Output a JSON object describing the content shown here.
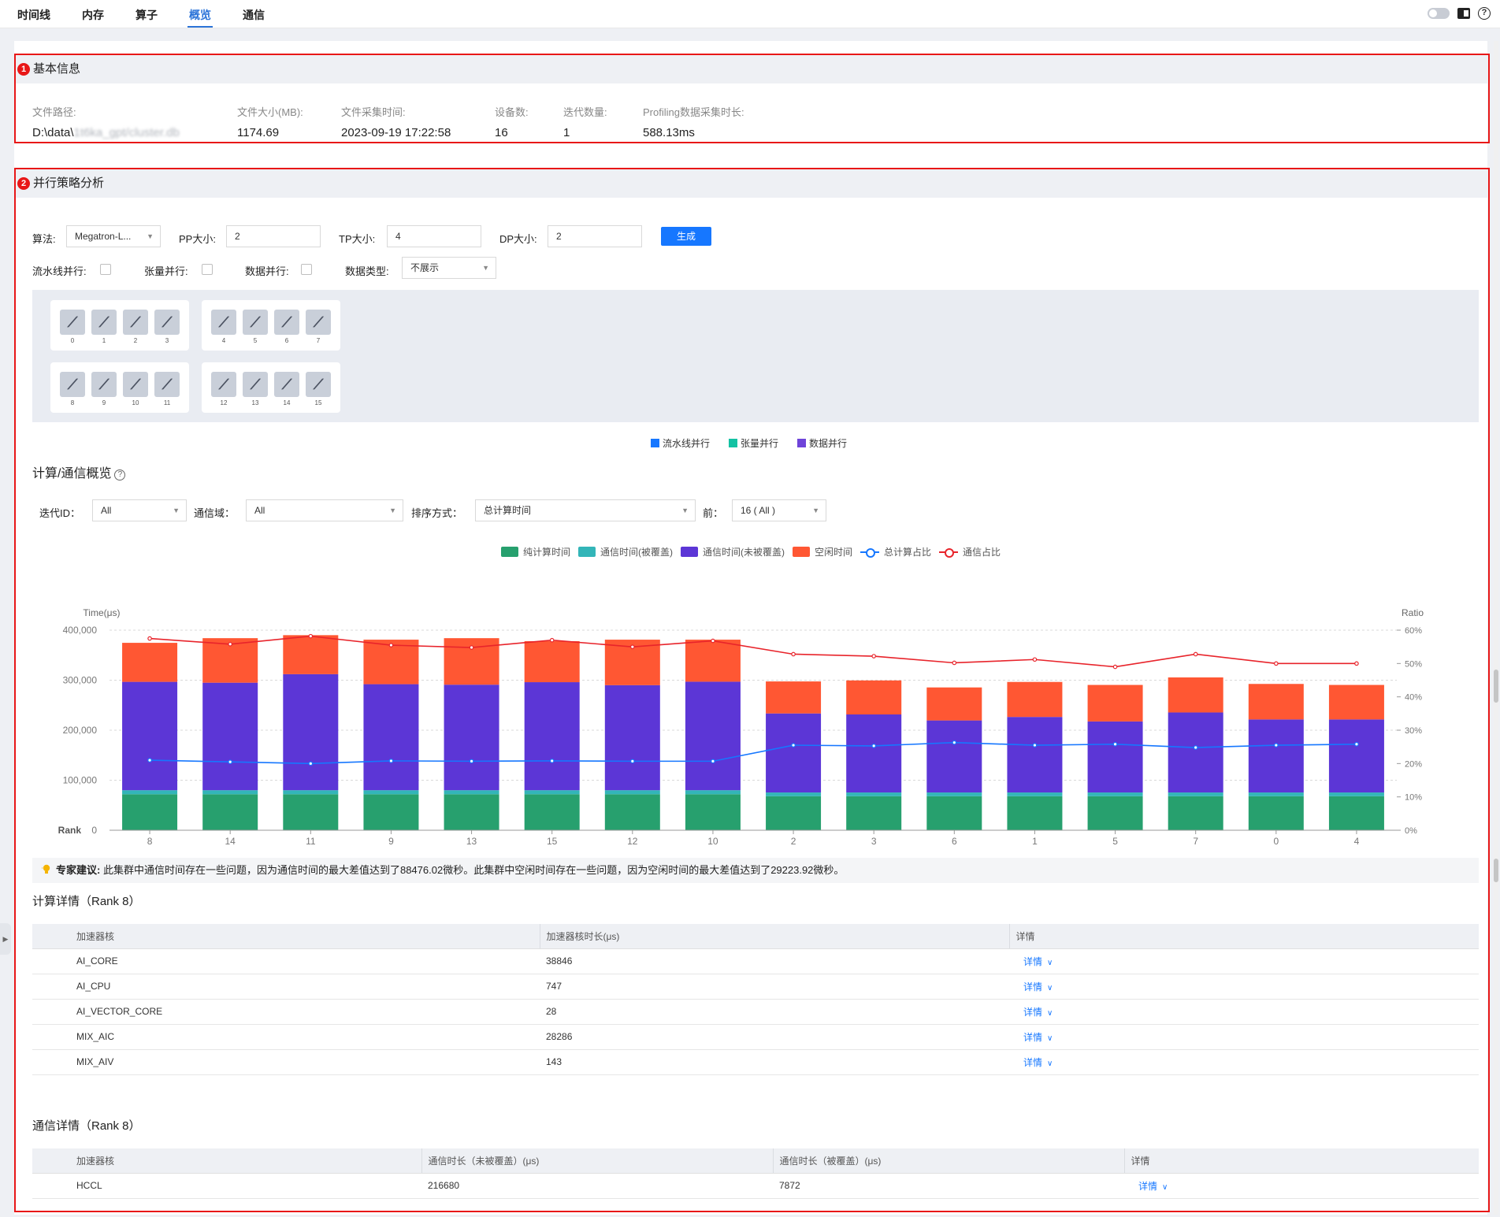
{
  "nav": {
    "tabs": [
      "时间线",
      "内存",
      "算子",
      "概览",
      "通信"
    ],
    "active": "概览"
  },
  "basic": {
    "badge": "1",
    "title": "基本信息",
    "fields": [
      {
        "label": "文件路径:",
        "value": "D:\\data\\"
      },
      {
        "label": "文件大小(MB):",
        "value": "1174.69"
      },
      {
        "label": "文件采集时间:",
        "value": "2023-09-19 17:22:58"
      },
      {
        "label": "设备数:",
        "value": "16"
      },
      {
        "label": "迭代数量:",
        "value": "1"
      },
      {
        "label": "Profiling数据采集时长:",
        "value": "588.13ms"
      }
    ]
  },
  "parallel": {
    "badge": "2",
    "title": "并行策略分析",
    "algo_label": "算法:",
    "algo_value": "Megatron-L...",
    "pp_label": "PP大小:",
    "pp_value": "2",
    "tp_label": "TP大小:",
    "tp_value": "4",
    "dp_label": "DP大小:",
    "dp_value": "2",
    "generate_label": "生成",
    "pipeline_label": "流水线并行:",
    "tensor_label": "张量并行:",
    "data_label": "数据并行:",
    "dtype_label": "数据类型:",
    "dtype_value": "不展示",
    "devices": [
      "0",
      "1",
      "2",
      "3",
      "4",
      "5",
      "6",
      "7",
      "8",
      "9",
      "10",
      "11",
      "12",
      "13",
      "14",
      "15"
    ],
    "legend": [
      {
        "name": "流水线并行",
        "color": "#1677ff"
      },
      {
        "name": "张量并行",
        "color": "#13c2a3"
      },
      {
        "name": "数据并行",
        "color": "#6e44d9"
      }
    ]
  },
  "overview": {
    "title": "计算/通信概览",
    "iter_label": "迭代ID：",
    "iter_value": "All",
    "domain_label": "通信域：",
    "domain_value": "All",
    "sort_label": "排序方式：",
    "sort_value": "总计算时间",
    "top_label": "前：",
    "top_value": "16 ( All )"
  },
  "chart_data": {
    "type": "bar",
    "ylabel": "Time(μs)",
    "y2label": "Ratio",
    "xlabel": "Rank",
    "categories": [
      "8",
      "14",
      "11",
      "9",
      "13",
      "15",
      "12",
      "10",
      "2",
      "3",
      "6",
      "1",
      "5",
      "7",
      "0",
      "4"
    ],
    "ylim": [
      0,
      400000
    ],
    "yticks": [
      "0",
      "100,000",
      "200,000",
      "300,000",
      "400,000"
    ],
    "y2lim": [
      0,
      60
    ],
    "y2ticks": [
      "0%",
      "10%",
      "20%",
      "30%",
      "40%",
      "50%",
      "60%"
    ],
    "stacked": true,
    "series": [
      {
        "name": "纯计算时间",
        "kind": "bar",
        "color": "#27a06e",
        "values": [
          72000,
          72000,
          72000,
          72000,
          72000,
          72000,
          72000,
          72000,
          68000,
          68000,
          68000,
          68000,
          68000,
          68000,
          68000,
          68000
        ]
      },
      {
        "name": "通信时间(被覆盖)",
        "kind": "bar",
        "color": "#33b5b8",
        "values": [
          8000,
          8000,
          8000,
          8000,
          8000,
          8000,
          8000,
          8000,
          7500,
          7500,
          7500,
          7500,
          7500,
          7500,
          7500,
          7500
        ]
      },
      {
        "name": "通信时间(未被覆盖)",
        "kind": "bar",
        "color": "#5c36d6",
        "values": [
          216680,
          215000,
          232000,
          212000,
          211000,
          216000,
          210000,
          217000,
          158000,
          156000,
          144000,
          151000,
          142000,
          160000,
          146000,
          146000
        ]
      },
      {
        "name": "空闲时间",
        "kind": "bar",
        "color": "#ff5733",
        "values": [
          78000,
          89000,
          78000,
          89000,
          93000,
          82000,
          91000,
          84000,
          64000,
          68000,
          66000,
          70000,
          73000,
          70000,
          71000,
          69000
        ]
      },
      {
        "name": "总计算占比",
        "kind": "line",
        "color": "#1677ff",
        "values": [
          21,
          20.5,
          20,
          20.8,
          20.7,
          20.8,
          20.7,
          20.7,
          25.5,
          25.3,
          26.3,
          25.5,
          25.8,
          24.8,
          25.5,
          25.8
        ]
      },
      {
        "name": "通信占比",
        "kind": "line",
        "color": "#e8242b",
        "values": [
          57.5,
          55.8,
          58.2,
          55.5,
          54.8,
          57,
          55,
          56.8,
          52.8,
          52.2,
          50.2,
          51.2,
          49,
          52.8,
          50,
          50
        ]
      }
    ]
  },
  "advice": {
    "label": "专家建议:",
    "text": "此集群中通信时间存在一些问题，因为通信时间的最大差值达到了88476.02微秒。此集群中空闲时间存在一些问题，因为空闲时间的最大差值达到了29223.92微秒。"
  },
  "compute_details": {
    "title": "计算详情（Rank 8）",
    "headers": [
      "加速器核",
      "加速器核时长(μs)",
      "详情"
    ],
    "rows": [
      [
        "AI_CORE",
        "38846",
        "详情"
      ],
      [
        "AI_CPU",
        "747",
        "详情"
      ],
      [
        "AI_VECTOR_CORE",
        "28",
        "详情"
      ],
      [
        "MIX_AIC",
        "28286",
        "详情"
      ],
      [
        "MIX_AIV",
        "143",
        "详情"
      ]
    ]
  },
  "comm_details": {
    "title": "通信详情（Rank 8）",
    "headers": [
      "加速器核",
      "通信时长（未被覆盖）(μs)",
      "通信时长（被覆盖）(μs)",
      "详情"
    ],
    "rows": [
      [
        "HCCL",
        "216680",
        "7872",
        "详情"
      ]
    ]
  }
}
